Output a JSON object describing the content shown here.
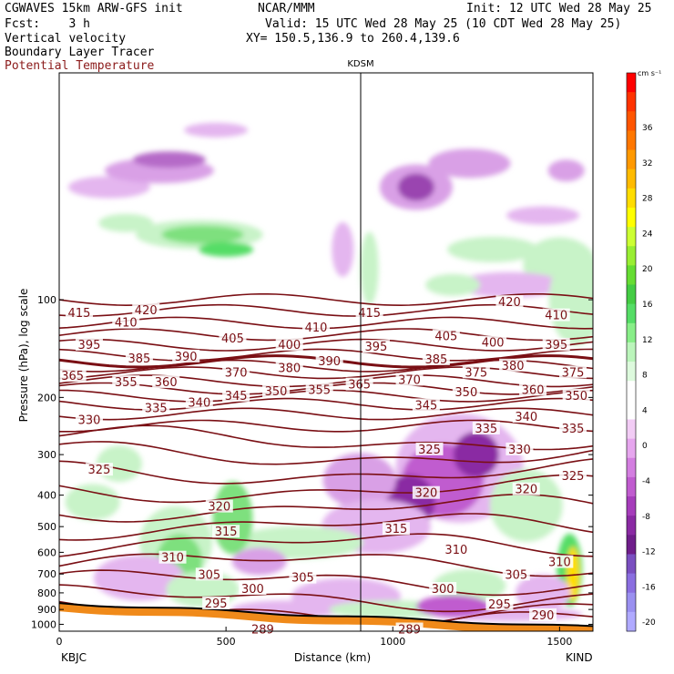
{
  "header": {
    "left_line1": "CGWAVES 15km ARW-GFS init",
    "left_line2": "Fcst:    3 h",
    "left_line3": "Vertical velocity",
    "left_line4": "Boundary Layer Tracer",
    "left_line5": "Potential Temperature",
    "center_line1": "NCAR/MMM",
    "right_line1": "Init: 12 UTC Wed 28 May 25",
    "right_line2": "Valid: 15 UTC Wed 28 May 25 (10 CDT Wed 28 May 25)",
    "right_line3": "XY= 150.5,136.9 to 260.4,139.6"
  },
  "colors": {
    "theta_contour": "#7a0f14",
    "positive_w": "#7ee07e",
    "negative_w": "#b05fc0",
    "terrain": "#f08a1a",
    "header_red": "#8b1a1a"
  },
  "chart_data": {
    "type": "heatmap",
    "title": "",
    "marker_label": "KDSM",
    "xlabel": "Distance (km)",
    "ylabel": "Pressure (hPa), log scale",
    "x_ticks": [
      "0",
      "500",
      "1000",
      "1500"
    ],
    "x_tick_values": [
      0,
      500,
      1000,
      1500
    ],
    "x_endpoints": {
      "left": "KBJC",
      "right": "KIND"
    },
    "xlim": [
      0,
      1600
    ],
    "y_ticks": [
      "100",
      "200",
      "300",
      "400",
      "500",
      "600",
      "700",
      "800",
      "900",
      "1000"
    ],
    "y_tick_values": [
      100,
      200,
      300,
      400,
      500,
      600,
      700,
      800,
      900,
      1000
    ],
    "ylim": [
      1050,
      20
    ],
    "y_scale": "log",
    "colorbar": {
      "unit": "cm s⁻¹",
      "labels": [
        "36",
        "32",
        "28",
        "24",
        "20",
        "16",
        "12",
        "8",
        "4",
        "0",
        "-4",
        "-8",
        "-12",
        "-16",
        "-20"
      ],
      "colors": [
        "#ff0000",
        "#ff3300",
        "#ff5500",
        "#ff7700",
        "#ff9900",
        "#ffbb00",
        "#ffdd00",
        "#ffff00",
        "#ccff33",
        "#99ee33",
        "#66dd33",
        "#44cc44",
        "#55dd66",
        "#88ee88",
        "#bbf5bb",
        "#ddfadd",
        "#ffffff",
        "#ffffff",
        "#f2ccf5",
        "#e6a6ee",
        "#d37ee0",
        "#c05ccf",
        "#a63dbb",
        "#8a2aa3",
        "#6f1e8a",
        "#7a4fc0",
        "#8a6ee0",
        "#9a90f0",
        "#b0aaff"
      ]
    },
    "theta_labels": [
      {
        "x": 60,
        "p": 110,
        "v": "415"
      },
      {
        "x": 260,
        "p": 108,
        "v": "420"
      },
      {
        "x": 930,
        "p": 110,
        "v": "415"
      },
      {
        "x": 1350,
        "p": 102,
        "v": "420"
      },
      {
        "x": 200,
        "p": 118,
        "v": "410"
      },
      {
        "x": 770,
        "p": 122,
        "v": "410"
      },
      {
        "x": 1490,
        "p": 112,
        "v": "410"
      },
      {
        "x": 520,
        "p": 132,
        "v": "405"
      },
      {
        "x": 1160,
        "p": 130,
        "v": "405"
      },
      {
        "x": 690,
        "p": 138,
        "v": "400"
      },
      {
        "x": 1300,
        "p": 136,
        "v": "400"
      },
      {
        "x": 90,
        "p": 138,
        "v": "395"
      },
      {
        "x": 950,
        "p": 140,
        "v": "395"
      },
      {
        "x": 1490,
        "p": 138,
        "v": "395"
      },
      {
        "x": 380,
        "p": 150,
        "v": "390"
      },
      {
        "x": 810,
        "p": 155,
        "v": "390"
      },
      {
        "x": 240,
        "p": 152,
        "v": "385"
      },
      {
        "x": 1130,
        "p": 153,
        "v": "385"
      },
      {
        "x": 1360,
        "p": 160,
        "v": "380"
      },
      {
        "x": 690,
        "p": 163,
        "v": "380"
      },
      {
        "x": 530,
        "p": 168,
        "v": "370"
      },
      {
        "x": 1050,
        "p": 177,
        "v": "370"
      },
      {
        "x": 1250,
        "p": 168,
        "v": "375"
      },
      {
        "x": 1540,
        "p": 168,
        "v": "375"
      },
      {
        "x": 40,
        "p": 172,
        "v": "365"
      },
      {
        "x": 900,
        "p": 183,
        "v": "365"
      },
      {
        "x": 200,
        "p": 180,
        "v": "355"
      },
      {
        "x": 320,
        "p": 180,
        "v": "360"
      },
      {
        "x": 780,
        "p": 190,
        "v": "355"
      },
      {
        "x": 1420,
        "p": 190,
        "v": "360"
      },
      {
        "x": 650,
        "p": 192,
        "v": "350"
      },
      {
        "x": 1220,
        "p": 193,
        "v": "350"
      },
      {
        "x": 1550,
        "p": 198,
        "v": "350"
      },
      {
        "x": 530,
        "p": 198,
        "v": "345"
      },
      {
        "x": 1100,
        "p": 212,
        "v": "345"
      },
      {
        "x": 420,
        "p": 208,
        "v": "340"
      },
      {
        "x": 1400,
        "p": 230,
        "v": "340"
      },
      {
        "x": 290,
        "p": 216,
        "v": "335"
      },
      {
        "x": 1280,
        "p": 250,
        "v": "335"
      },
      {
        "x": 1540,
        "p": 250,
        "v": "335"
      },
      {
        "x": 90,
        "p": 235,
        "v": "330"
      },
      {
        "x": 1380,
        "p": 290,
        "v": "330"
      },
      {
        "x": 120,
        "p": 335,
        "v": "325"
      },
      {
        "x": 1110,
        "p": 290,
        "v": "325"
      },
      {
        "x": 1540,
        "p": 350,
        "v": "325"
      },
      {
        "x": 1400,
        "p": 385,
        "v": "320"
      },
      {
        "x": 480,
        "p": 435,
        "v": "320"
      },
      {
        "x": 1100,
        "p": 395,
        "v": "320"
      },
      {
        "x": 500,
        "p": 520,
        "v": "315"
      },
      {
        "x": 1010,
        "p": 510,
        "v": "315"
      },
      {
        "x": 340,
        "p": 625,
        "v": "310"
      },
      {
        "x": 1190,
        "p": 590,
        "v": "310"
      },
      {
        "x": 1500,
        "p": 645,
        "v": "310"
      },
      {
        "x": 450,
        "p": 705,
        "v": "305"
      },
      {
        "x": 730,
        "p": 720,
        "v": "305"
      },
      {
        "x": 1370,
        "p": 705,
        "v": "305"
      },
      {
        "x": 580,
        "p": 780,
        "v": "300"
      },
      {
        "x": 1150,
        "p": 780,
        "v": "300"
      },
      {
        "x": 470,
        "p": 865,
        "v": "295"
      },
      {
        "x": 1320,
        "p": 870,
        "v": "295"
      },
      {
        "x": 1450,
        "p": 940,
        "v": "290"
      },
      {
        "x": 610,
        "p": 1040,
        "v": "289"
      },
      {
        "x": 1050,
        "p": 1040,
        "v": "289"
      }
    ]
  }
}
